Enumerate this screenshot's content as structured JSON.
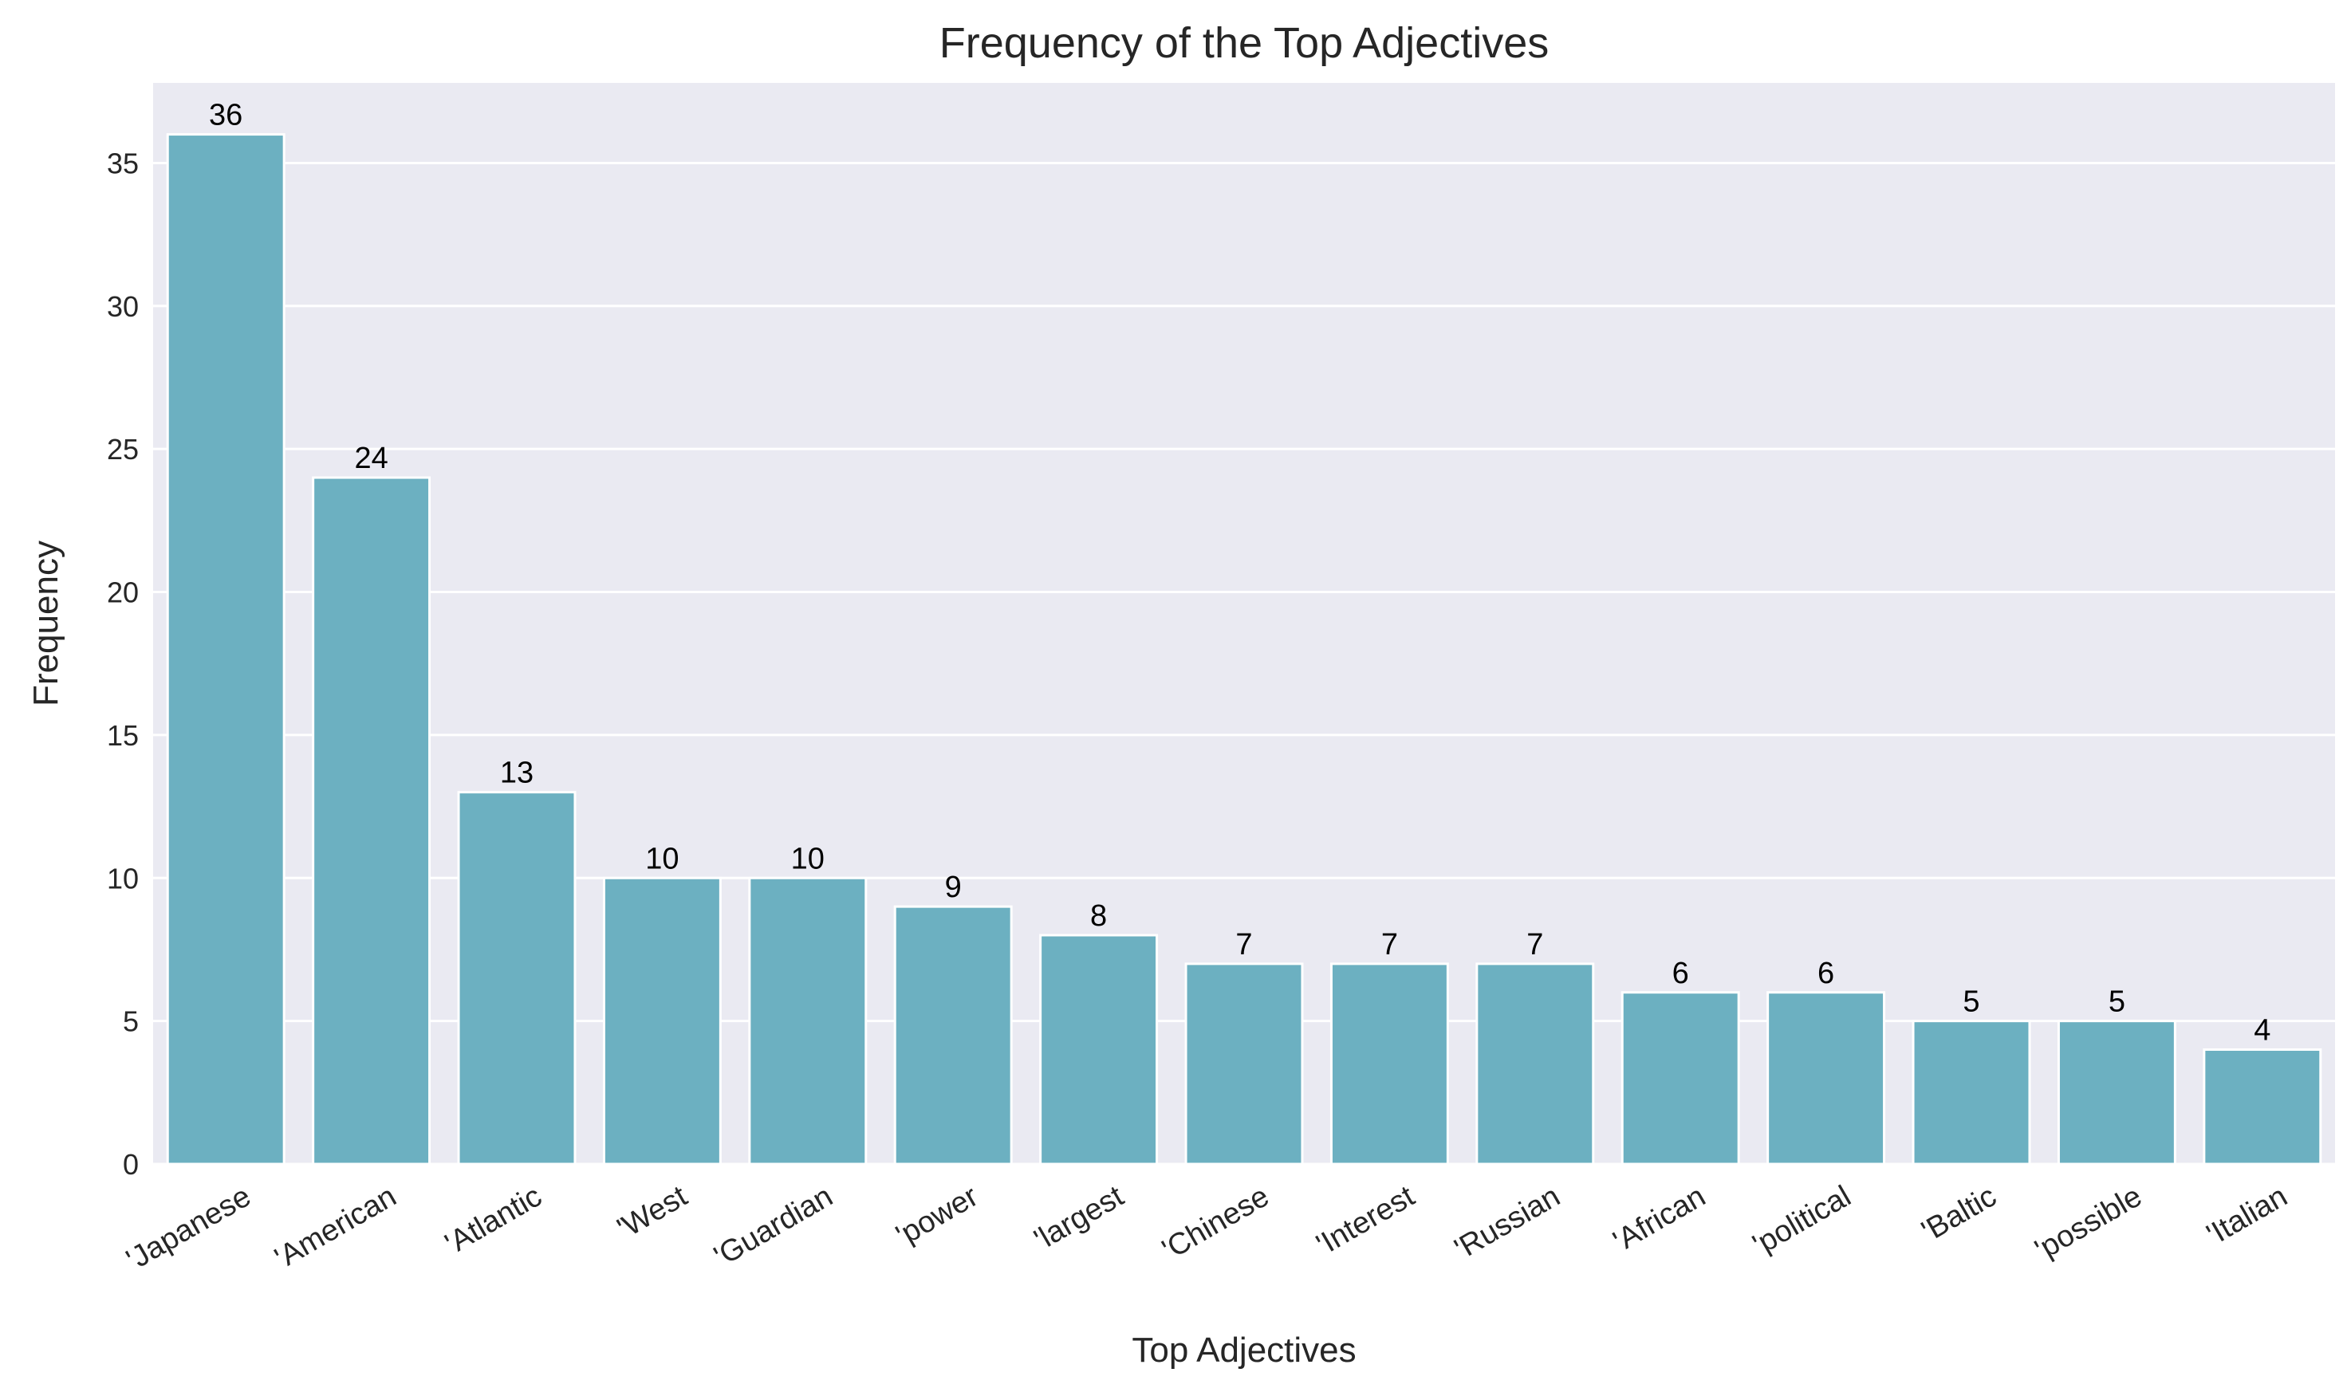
{
  "chart_data": {
    "type": "bar",
    "title": "Frequency of the Top Adjectives",
    "xlabel": "Top Adjectives",
    "ylabel": "Frequency",
    "categories": [
      "'Japanese",
      "'American",
      "'Atlantic",
      "'West",
      "'Guardian",
      "'power",
      "'largest",
      "'Chinese",
      "'Interest",
      "'Russian",
      "'African",
      "'political",
      "'Baltic",
      "'possible",
      "'Italian"
    ],
    "values": [
      36,
      24,
      13,
      10,
      10,
      9,
      8,
      7,
      7,
      7,
      6,
      6,
      5,
      5,
      4
    ],
    "ylim": [
      0,
      37.8
    ],
    "yticks": [
      0,
      5,
      10,
      15,
      20,
      25,
      30,
      35
    ],
    "grid": true,
    "bar_color": "#6cb0c1",
    "background_color": "#eaeaf2",
    "grid_color": "#ffffff"
  }
}
